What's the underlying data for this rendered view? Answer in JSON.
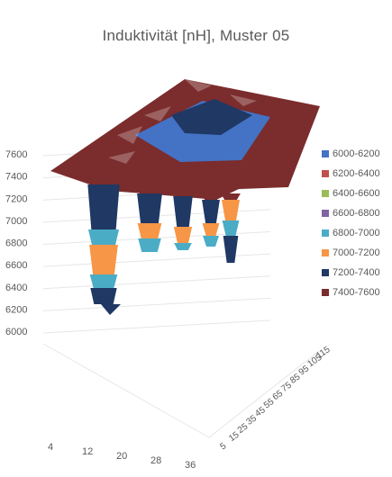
{
  "chart_data": {
    "type": "surface",
    "title": "Induktivität [nH], Muster 05",
    "x_ticks": [
      "4",
      "12",
      "20",
      "28",
      "36"
    ],
    "y_ticks": [
      "5",
      "15",
      "25",
      "35",
      "45",
      "55",
      "65",
      "75",
      "85",
      "95",
      "105",
      "115"
    ],
    "z_ticks": [
      "6000",
      "6200",
      "6400",
      "6600",
      "6800",
      "7000",
      "7200",
      "7400",
      "7600"
    ],
    "zlim": [
      6000,
      7600
    ],
    "grid": true,
    "legend_position": "right",
    "bands": [
      {
        "name": "6000-6200",
        "color": "#4472C4"
      },
      {
        "name": "6200-6400",
        "color": "#C0504D"
      },
      {
        "name": "6400-6600",
        "color": "#9BBB59"
      },
      {
        "name": "6600-6800",
        "color": "#8064A2"
      },
      {
        "name": "6800-7000",
        "color": "#4BACC6"
      },
      {
        "name": "7000-7200",
        "color": "#F79646"
      },
      {
        "name": "7200-7400",
        "color": "#1F3864"
      },
      {
        "name": "7400-7600",
        "color": "#7B2C2C"
      }
    ]
  }
}
